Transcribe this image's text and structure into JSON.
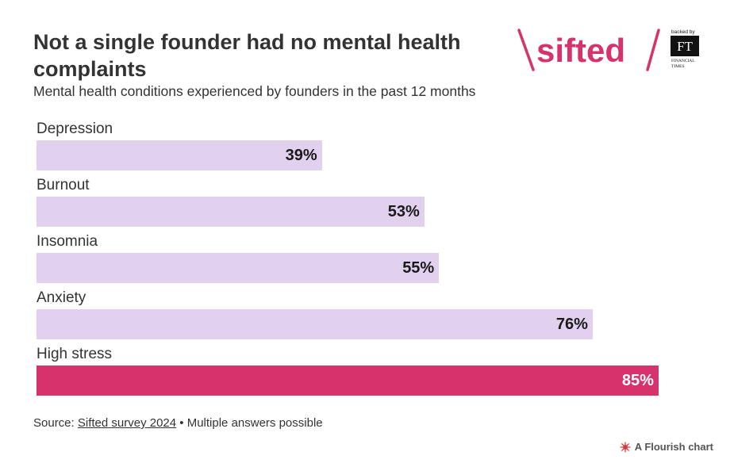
{
  "header": {
    "title": "Not a single founder had no mental health complaints",
    "subtitle": "Mental health conditions experienced by founders in the past 12 months"
  },
  "logo": {
    "brand_text": "sifted",
    "backed_by": "backed by",
    "ft_mark": "FT",
    "ft_name_line1": "FINANCIAL",
    "ft_name_line2": "TIMES",
    "brand_color": "#d6336c"
  },
  "chart_data": {
    "type": "bar",
    "orientation": "horizontal",
    "title": "Not a single founder had no mental health complaints",
    "subtitle": "Mental health conditions experienced by founders in the past 12 months",
    "categories": [
      "Depression",
      "Burnout",
      "Insomnia",
      "Anxiety",
      "High stress"
    ],
    "values": [
      39,
      53,
      55,
      76,
      85
    ],
    "value_labels": [
      "39%",
      "53%",
      "55%",
      "76%",
      "85%"
    ],
    "highlight": "High stress",
    "colors": {
      "default": "#e2d0ef",
      "highlight": "#d6336c"
    },
    "xlim": [
      0,
      90
    ],
    "unit": "%"
  },
  "footer": {
    "source_prefix": "Source: ",
    "source_link": "Sifted survey 2024",
    "source_suffix": " • Multiple answers possible",
    "flourish_label": "A Flourish chart"
  }
}
